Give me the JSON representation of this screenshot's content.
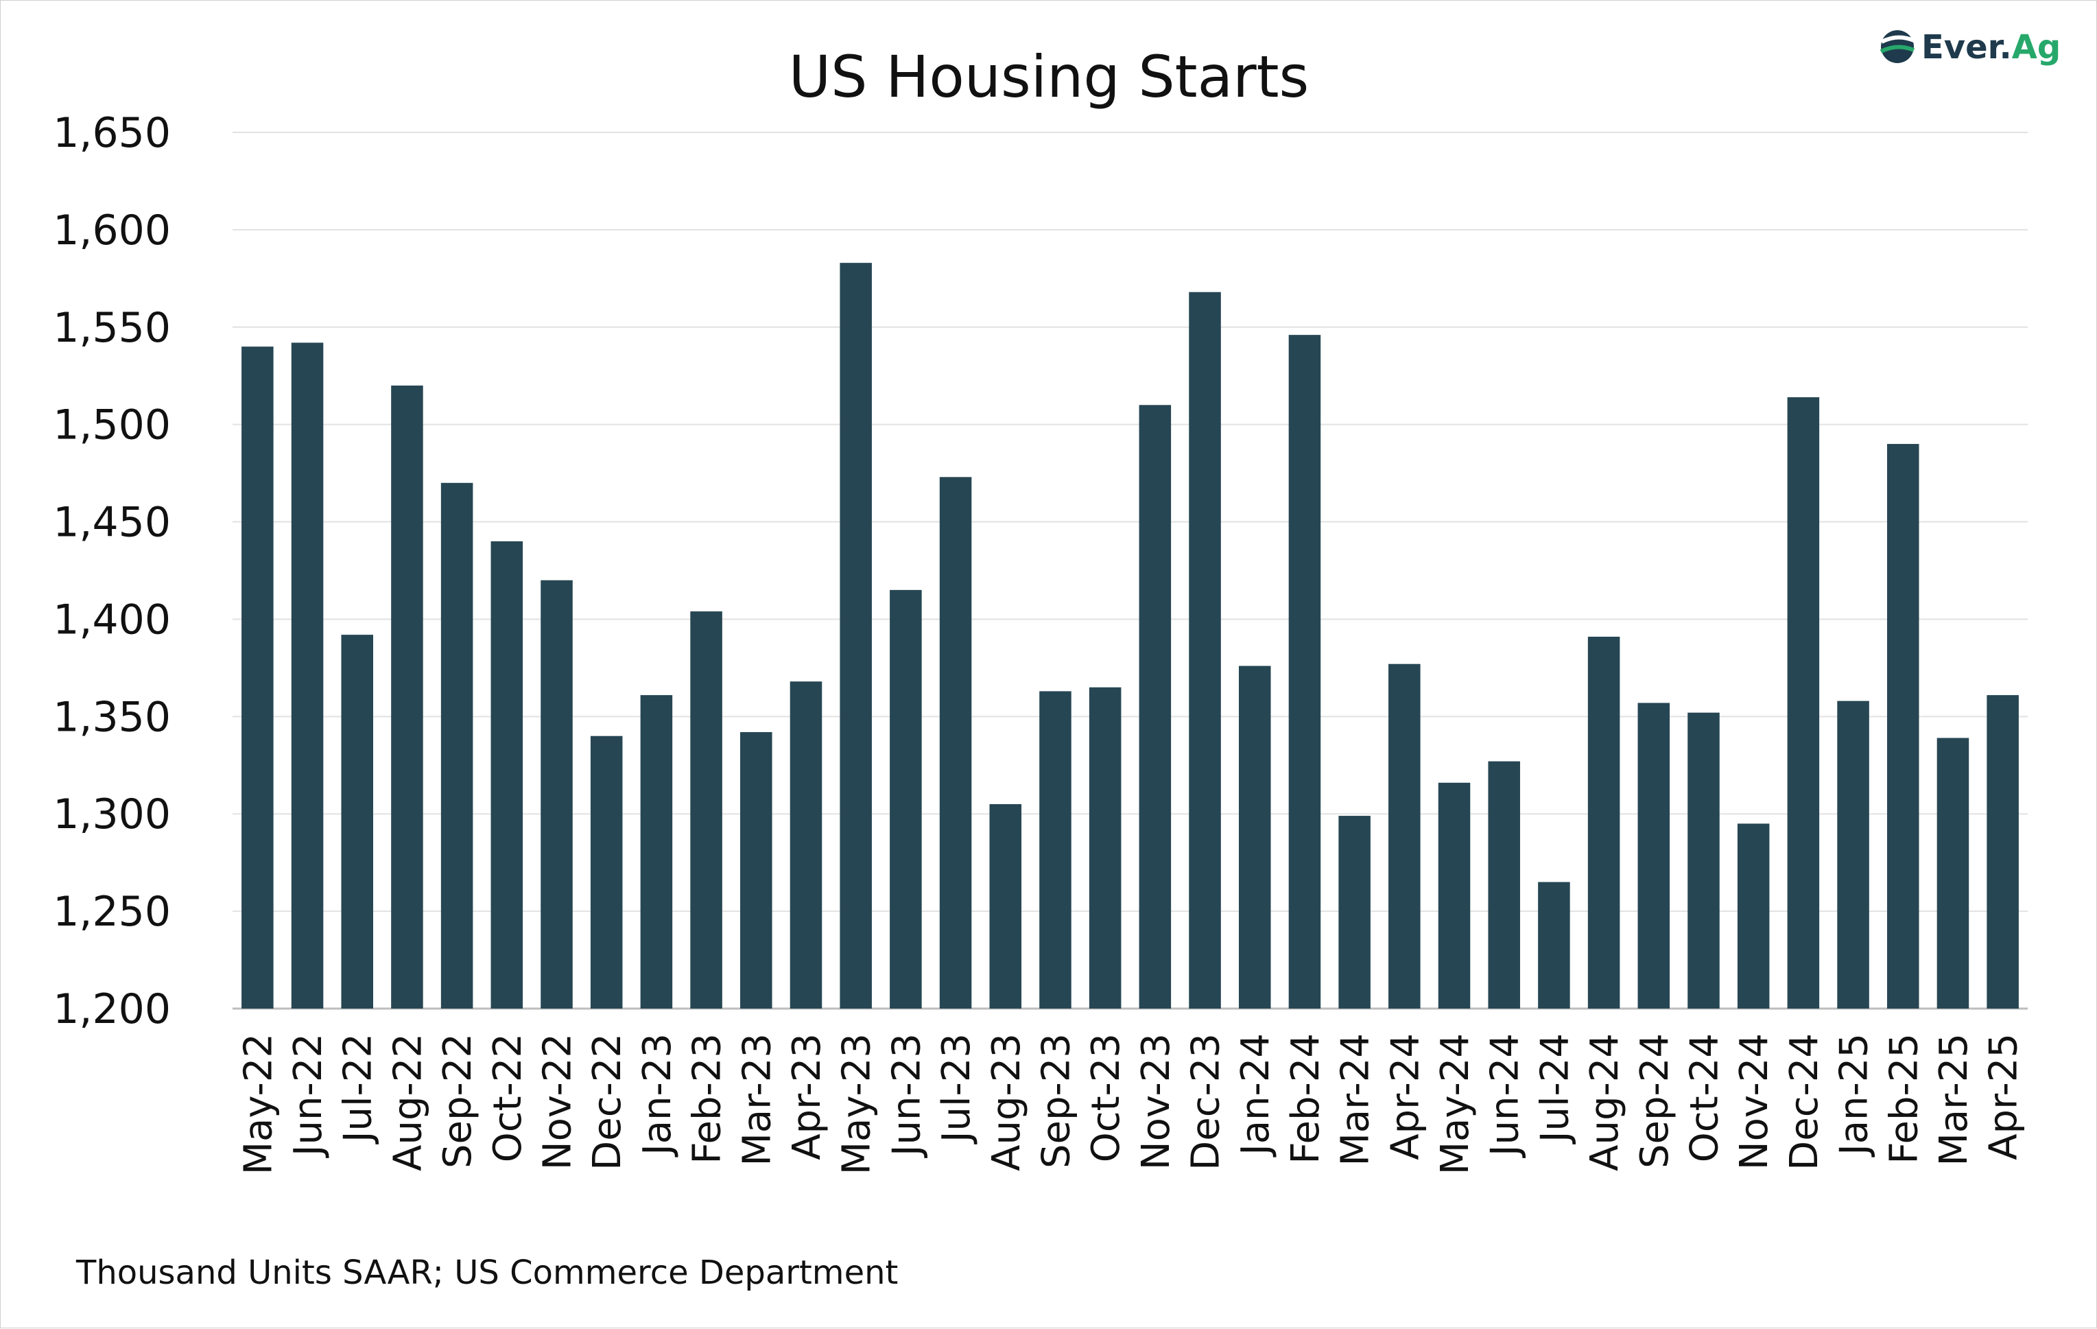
{
  "chart_data": {
    "type": "bar",
    "title": "US Housing Starts",
    "xlabel": "",
    "ylabel": "",
    "ylim": [
      1200,
      1650
    ],
    "yticks": [
      1200,
      1250,
      1300,
      1350,
      1400,
      1450,
      1500,
      1550,
      1600,
      1650
    ],
    "ytick_labels": [
      "1,200",
      "1,250",
      "1,300",
      "1,350",
      "1,400",
      "1,450",
      "1,500",
      "1,550",
      "1,600",
      "1,650"
    ],
    "grid": true,
    "bar_color": "#264653",
    "categories": [
      "May-22",
      "Jun-22",
      "Jul-22",
      "Aug-22",
      "Sep-22",
      "Oct-22",
      "Nov-22",
      "Dec-22",
      "Jan-23",
      "Feb-23",
      "Mar-23",
      "Apr-23",
      "May-23",
      "Jun-23",
      "Jul-23",
      "Aug-23",
      "Sep-23",
      "Oct-23",
      "Nov-23",
      "Dec-23",
      "Jan-24",
      "Feb-24",
      "Mar-24",
      "Apr-24",
      "May-24",
      "Jun-24",
      "Jul-24",
      "Aug-24",
      "Sep-24",
      "Oct-24",
      "Nov-24",
      "Dec-24",
      "Jan-25",
      "Feb-25",
      "Mar-25",
      "Apr-25"
    ],
    "values": [
      1540,
      1542,
      1392,
      1520,
      1470,
      1440,
      1420,
      1340,
      1361,
      1404,
      1342,
      1368,
      1583,
      1415,
      1473,
      1305,
      1363,
      1365,
      1510,
      1568,
      1376,
      1546,
      1299,
      1377,
      1316,
      1327,
      1265,
      1391,
      1357,
      1352,
      1295,
      1514,
      1358,
      1490,
      1339,
      1361
    ]
  },
  "footer": {
    "source": "Thousand Units SAAR; US Commerce Department"
  },
  "logo": {
    "text": "Ever.Ag",
    "icon": "ever-ag-logo-icon",
    "brand_dark": "#1e3a4c",
    "brand_green": "#27a86b"
  }
}
